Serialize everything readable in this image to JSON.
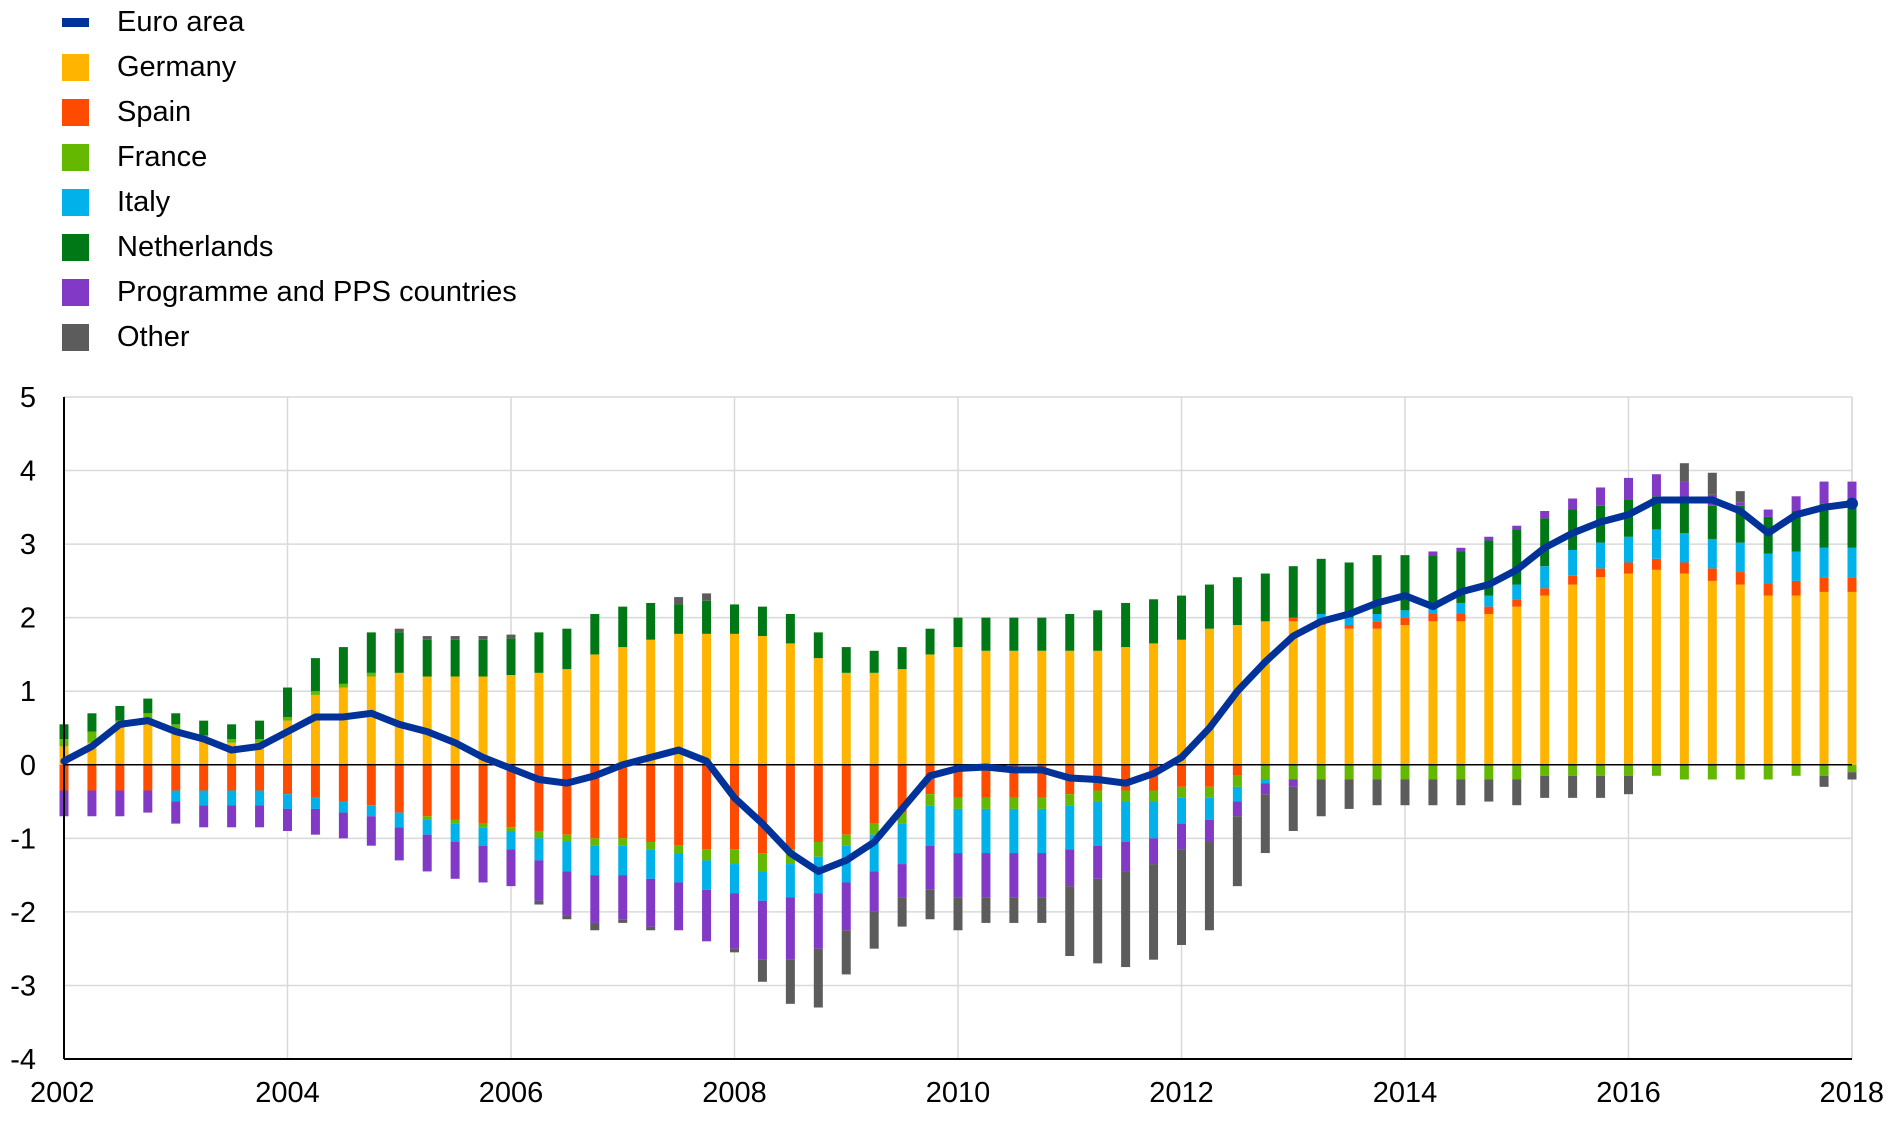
{
  "chart_data": {
    "type": "bar",
    "title": "",
    "xlabel": "",
    "ylabel": "",
    "ylim": [
      -4,
      5
    ],
    "yticks": [
      -4,
      -3,
      -2,
      -1,
      0,
      1,
      2,
      3,
      4,
      5
    ],
    "xlim": [
      2002,
      2018
    ],
    "xticks": [
      2002,
      2004,
      2006,
      2008,
      2010,
      2012,
      2014,
      2016,
      2018
    ],
    "grid": true,
    "legend_position": "top-left",
    "x": [
      2002.0,
      2002.25,
      2002.5,
      2002.75,
      2003.0,
      2003.25,
      2003.5,
      2003.75,
      2004.0,
      2004.25,
      2004.5,
      2004.75,
      2005.0,
      2005.25,
      2005.5,
      2005.75,
      2006.0,
      2006.25,
      2006.5,
      2006.75,
      2007.0,
      2007.25,
      2007.5,
      2007.75,
      2008.0,
      2008.25,
      2008.5,
      2008.75,
      2009.0,
      2009.25,
      2009.5,
      2009.75,
      2010.0,
      2010.25,
      2010.5,
      2010.75,
      2011.0,
      2011.25,
      2011.5,
      2011.75,
      2012.0,
      2012.25,
      2012.5,
      2012.75,
      2013.0,
      2013.25,
      2013.5,
      2013.75,
      2014.0,
      2014.25,
      2014.5,
      2014.75,
      2015.0,
      2015.25,
      2015.5,
      2015.75,
      2016.0,
      2016.25,
      2016.5,
      2016.75,
      2017.0,
      2017.25,
      2017.5,
      2017.75,
      2018.0
    ],
    "series": [
      {
        "name": "Germany",
        "kind": "bar",
        "color": "#FFB400",
        "values": [
          0.25,
          0.3,
          0.5,
          0.6,
          0.45,
          0.35,
          0.3,
          0.3,
          0.6,
          0.95,
          1.05,
          1.2,
          1.25,
          1.2,
          1.2,
          1.2,
          1.22,
          1.25,
          1.3,
          1.5,
          1.6,
          1.7,
          1.78,
          1.78,
          1.78,
          1.75,
          1.65,
          1.45,
          1.25,
          1.25,
          1.3,
          1.5,
          1.6,
          1.55,
          1.55,
          1.55,
          1.55,
          1.55,
          1.6,
          1.65,
          1.7,
          1.85,
          1.9,
          1.95,
          1.95,
          1.9,
          1.85,
          1.85,
          1.9,
          1.95,
          1.95,
          2.05,
          2.15,
          2.3,
          2.45,
          2.55,
          2.6,
          2.65,
          2.6,
          2.5,
          2.45,
          2.3,
          2.3,
          2.35,
          2.35
        ]
      },
      {
        "name": "Spain",
        "kind": "bar",
        "color": "#FF4B00",
        "values": [
          -0.35,
          -0.35,
          -0.35,
          -0.35,
          -0.35,
          -0.35,
          -0.35,
          -0.35,
          -0.4,
          -0.45,
          -0.5,
          -0.55,
          -0.65,
          -0.7,
          -0.75,
          -0.8,
          -0.85,
          -0.9,
          -0.95,
          -1.0,
          -1.0,
          -1.05,
          -1.1,
          -1.15,
          -1.15,
          -1.2,
          -1.15,
          -1.05,
          -0.95,
          -0.8,
          -0.65,
          -0.4,
          -0.45,
          -0.45,
          -0.45,
          -0.45,
          -0.4,
          -0.35,
          -0.35,
          -0.35,
          -0.3,
          -0.3,
          -0.15,
          0.0,
          0.05,
          0.05,
          0.05,
          0.1,
          0.1,
          0.1,
          0.1,
          0.1,
          0.1,
          0.1,
          0.12,
          0.12,
          0.15,
          0.15,
          0.15,
          0.17,
          0.17,
          0.17,
          0.2,
          0.2,
          0.2
        ]
      },
      {
        "name": "France",
        "kind": "bar",
        "color": "#65B800",
        "values": [
          0.1,
          0.15,
          0.1,
          0.1,
          0.1,
          0.05,
          0.05,
          0.05,
          0.05,
          0.05,
          0.05,
          0.05,
          0.0,
          -0.05,
          -0.05,
          -0.05,
          -0.05,
          -0.1,
          -0.1,
          -0.1,
          -0.1,
          -0.1,
          -0.1,
          -0.15,
          -0.2,
          -0.25,
          -0.2,
          -0.2,
          -0.15,
          -0.15,
          -0.15,
          -0.15,
          -0.15,
          -0.15,
          -0.15,
          -0.15,
          -0.15,
          -0.15,
          -0.15,
          -0.15,
          -0.15,
          -0.15,
          -0.15,
          -0.2,
          -0.2,
          -0.2,
          -0.2,
          -0.2,
          -0.2,
          -0.2,
          -0.2,
          -0.2,
          -0.2,
          -0.15,
          -0.15,
          -0.15,
          -0.15,
          -0.15,
          -0.2,
          -0.2,
          -0.2,
          -0.2,
          -0.15,
          -0.15,
          -0.1
        ]
      },
      {
        "name": "Italy",
        "kind": "bar",
        "color": "#00B1EA",
        "values": [
          0.0,
          0.0,
          0.0,
          0.0,
          -0.15,
          -0.2,
          -0.2,
          -0.2,
          -0.2,
          -0.15,
          -0.15,
          -0.15,
          -0.2,
          -0.2,
          -0.25,
          -0.25,
          -0.25,
          -0.3,
          -0.4,
          -0.4,
          -0.4,
          -0.4,
          -0.4,
          -0.4,
          -0.4,
          -0.4,
          -0.45,
          -0.5,
          -0.5,
          -0.5,
          -0.55,
          -0.55,
          -0.6,
          -0.6,
          -0.6,
          -0.6,
          -0.6,
          -0.6,
          -0.55,
          -0.5,
          -0.35,
          -0.3,
          -0.2,
          -0.05,
          0.0,
          0.1,
          0.1,
          0.1,
          0.1,
          0.15,
          0.15,
          0.15,
          0.2,
          0.3,
          0.35,
          0.35,
          0.35,
          0.4,
          0.4,
          0.4,
          0.4,
          0.4,
          0.4,
          0.4,
          0.4
        ]
      },
      {
        "name": "Netherlands",
        "kind": "bar",
        "color": "#007816",
        "values": [
          0.2,
          0.25,
          0.2,
          0.2,
          0.15,
          0.2,
          0.2,
          0.25,
          0.4,
          0.45,
          0.5,
          0.55,
          0.55,
          0.5,
          0.5,
          0.5,
          0.5,
          0.55,
          0.55,
          0.55,
          0.55,
          0.5,
          0.4,
          0.45,
          0.4,
          0.4,
          0.4,
          0.35,
          0.35,
          0.3,
          0.3,
          0.35,
          0.4,
          0.45,
          0.45,
          0.45,
          0.5,
          0.55,
          0.6,
          0.6,
          0.6,
          0.6,
          0.65,
          0.65,
          0.7,
          0.75,
          0.75,
          0.8,
          0.75,
          0.65,
          0.7,
          0.75,
          0.75,
          0.65,
          0.55,
          0.5,
          0.5,
          0.45,
          0.45,
          0.45,
          0.5,
          0.5,
          0.55,
          0.6,
          0.55
        ]
      },
      {
        "name": "Programme and PPS countries",
        "kind": "bar",
        "color": "#8139C6",
        "values": [
          -0.35,
          -0.35,
          -0.35,
          -0.3,
          -0.3,
          -0.3,
          -0.3,
          -0.3,
          -0.3,
          -0.35,
          -0.35,
          -0.4,
          -0.45,
          -0.5,
          -0.5,
          -0.5,
          -0.5,
          -0.55,
          -0.6,
          -0.65,
          -0.6,
          -0.65,
          -0.65,
          -0.7,
          -0.75,
          -0.8,
          -0.85,
          -0.75,
          -0.65,
          -0.55,
          -0.45,
          -0.6,
          -0.6,
          -0.6,
          -0.6,
          -0.6,
          -0.5,
          -0.45,
          -0.4,
          -0.35,
          -0.35,
          -0.3,
          -0.2,
          -0.15,
          -0.1,
          0.0,
          0.0,
          0.0,
          0.0,
          0.05,
          0.05,
          0.05,
          0.05,
          0.1,
          0.15,
          0.25,
          0.3,
          0.3,
          0.25,
          0.15,
          0.05,
          0.1,
          0.2,
          0.3,
          0.35
        ]
      },
      {
        "name": "Other",
        "kind": "bar",
        "color": "#5C5C5C",
        "values": [
          0.0,
          0.0,
          0.0,
          0.0,
          0.0,
          0.0,
          0.0,
          0.0,
          0.0,
          0.0,
          0.0,
          0.0,
          0.05,
          0.05,
          0.05,
          0.05,
          0.05,
          -0.05,
          -0.05,
          -0.1,
          -0.05,
          -0.05,
          0.1,
          0.1,
          -0.05,
          -0.3,
          -0.6,
          -0.8,
          -0.6,
          -0.5,
          -0.4,
          -0.4,
          -0.45,
          -0.35,
          -0.35,
          -0.35,
          -0.95,
          -1.15,
          -1.3,
          -1.3,
          -1.3,
          -1.2,
          -0.95,
          -0.8,
          -0.6,
          -0.5,
          -0.4,
          -0.35,
          -0.35,
          -0.35,
          -0.35,
          -0.3,
          -0.35,
          -0.3,
          -0.3,
          -0.3,
          -0.25,
          0.0,
          0.25,
          0.3,
          0.15,
          0.0,
          0.0,
          -0.15,
          -0.1
        ]
      },
      {
        "name": "Euro area",
        "kind": "line",
        "color": "#003299",
        "values": [
          0.05,
          0.25,
          0.55,
          0.6,
          0.45,
          0.35,
          0.2,
          0.25,
          0.45,
          0.65,
          0.65,
          0.7,
          0.55,
          0.45,
          0.3,
          0.1,
          -0.05,
          -0.2,
          -0.25,
          -0.15,
          0.0,
          0.1,
          0.2,
          0.05,
          -0.45,
          -0.8,
          -1.2,
          -1.45,
          -1.3,
          -1.05,
          -0.6,
          -0.15,
          -0.05,
          -0.03,
          -0.07,
          -0.07,
          -0.18,
          -0.2,
          -0.25,
          -0.12,
          0.1,
          0.5,
          1.0,
          1.4,
          1.75,
          1.95,
          2.05,
          2.2,
          2.3,
          2.15,
          2.35,
          2.45,
          2.65,
          2.95,
          3.15,
          3.3,
          3.4,
          3.6,
          3.6,
          3.6,
          3.45,
          3.15,
          3.4,
          3.5,
          3.55
        ]
      }
    ],
    "legend_order": [
      "Euro area",
      "Germany",
      "Spain",
      "France",
      "Italy",
      "Netherlands",
      "Programme and PPS countries",
      "Other"
    ]
  }
}
